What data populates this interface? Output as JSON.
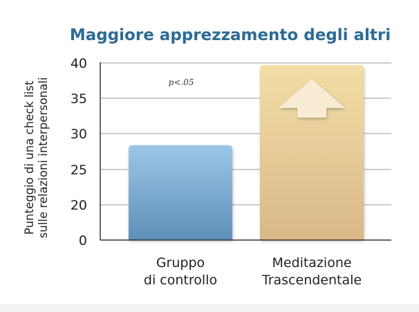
{
  "chart_data": {
    "type": "bar",
    "title": "Maggiore apprezzamento degli altri",
    "ylabel_lines": [
      "Punteggio di una check list",
      "sulle relazioni interpersonali"
    ],
    "xlabel": "",
    "categories": [
      {
        "lines": [
          "Gruppo",
          "di controllo"
        ]
      },
      {
        "lines": [
          "Meditazione",
          "Trascendentale"
        ]
      }
    ],
    "values": [
      28.4,
      39.7
    ],
    "y_ticks": [
      0,
      20,
      25,
      30,
      35,
      40
    ],
    "y_tick_labels": [
      "0",
      "20",
      "25",
      "30",
      "35",
      "40"
    ],
    "annotation": "p<.05",
    "grid": true,
    "colors": {
      "title": "#2e6b93",
      "bar_control_top": "#9cc6e6",
      "bar_control_bottom": "#5f8fb8",
      "bar_tm_top": "#f3dea7",
      "bar_tm_bottom": "#d8b887",
      "arrow": "#f9ecd4",
      "grid": "#9a9a9a",
      "axis": "#333333",
      "text": "#222222"
    },
    "arrow_icon": "up-arrow-icon"
  }
}
